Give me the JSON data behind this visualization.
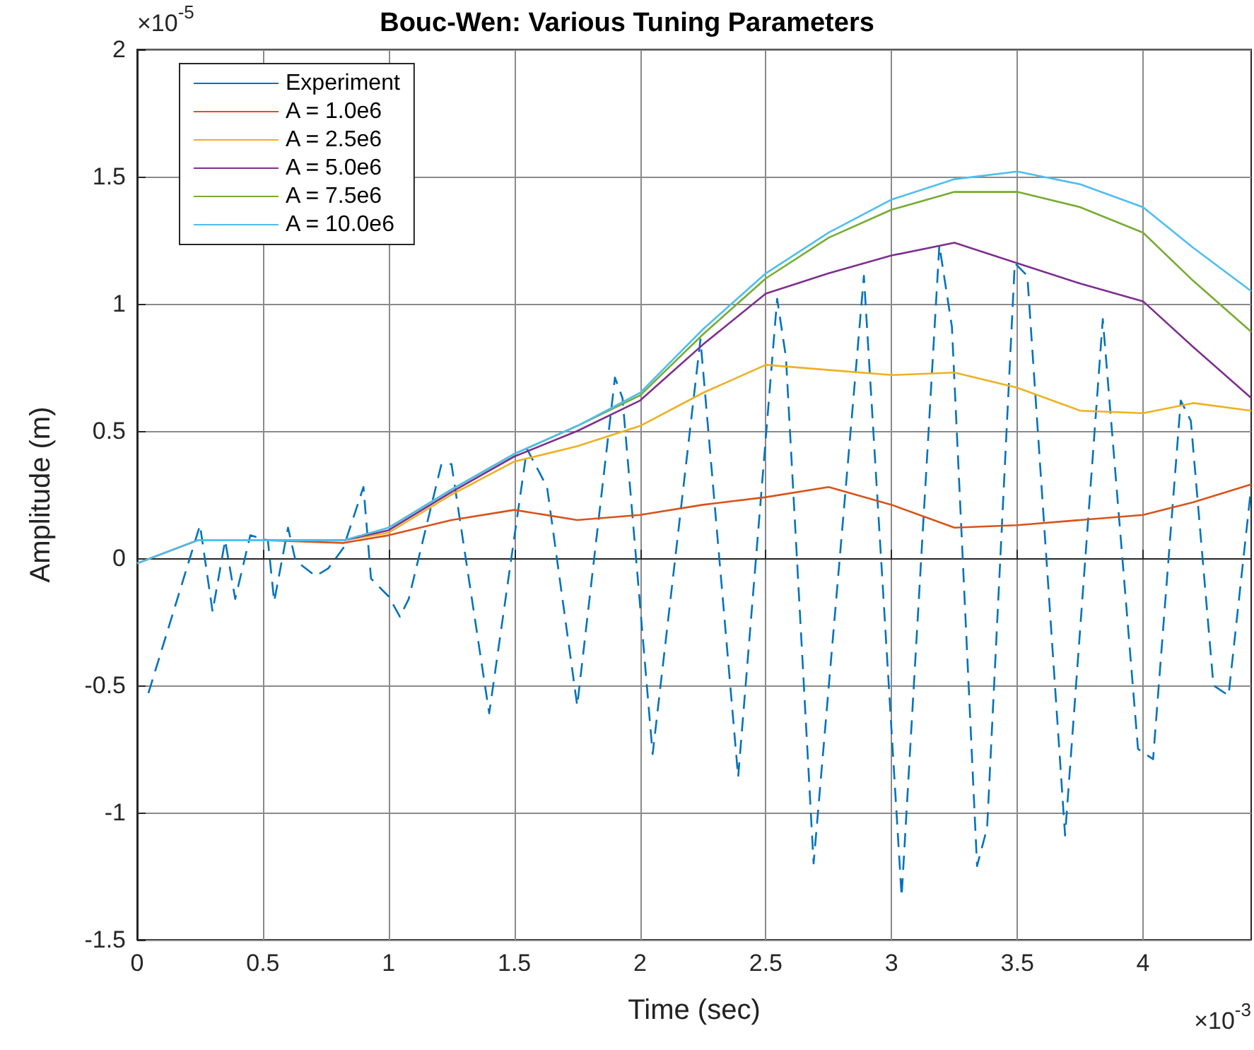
{
  "chart_data": {
    "type": "line",
    "title": "Bouc-Wen: Various Tuning Parameters",
    "xlabel": "Time (sec)",
    "ylabel": "Amplitude (m)",
    "annotations": [
      "×10$^{-5}$",
      "×10$^{-3}$"
    ],
    "xlim": [
      0,
      4.43
    ],
    "xticks": [
      0,
      0.5,
      1,
      1.5,
      2,
      2.5,
      3,
      3.5,
      4
    ],
    "ylim": [
      -1.5,
      2
    ],
    "yticks": [
      -1.5,
      -1,
      -0.5,
      0,
      0.5,
      1,
      1.5,
      2
    ],
    "grid": true,
    "legend": "top left",
    "marker": "none",
    "series": [
      {
        "name": "Experiment",
        "color": "#0072bd",
        "line_style": "dashed",
        "x": [
          0.045,
          0.25,
          0.3,
          0.35,
          0.39,
          0.45,
          0.52,
          0.545,
          0.6,
          0.63,
          0.71,
          0.76,
          0.82,
          0.9,
          0.93,
          1.0,
          1.045,
          1.08,
          1.21,
          1.25,
          1.4,
          1.55,
          1.63,
          1.75,
          1.9,
          1.93,
          2.05,
          2.24,
          2.39,
          2.545,
          2.58,
          2.69,
          2.89,
          3.04,
          3.19,
          3.24,
          3.34,
          3.38,
          3.49,
          3.54,
          3.69,
          3.84,
          3.98,
          4.04,
          4.15,
          4.19,
          4.28,
          4.34,
          4.43
        ],
        "values": [
          -0.53,
          0.13,
          -0.21,
          0.07,
          -0.16,
          0.09,
          0.07,
          -0.17,
          0.12,
          -0.01,
          -0.07,
          -0.04,
          0.04,
          0.28,
          -0.08,
          -0.15,
          -0.23,
          -0.16,
          0.37,
          0.37,
          -0.61,
          0.43,
          0.28,
          -0.58,
          0.71,
          0.63,
          -0.77,
          0.86,
          -0.86,
          1.02,
          0.79,
          -1.2,
          1.11,
          -1.33,
          1.23,
          0.91,
          -1.21,
          -1.06,
          1.16,
          1.11,
          -1.09,
          0.94,
          -0.75,
          -0.79,
          0.62,
          0.54,
          -0.5,
          -0.54,
          0.28
        ]
      },
      {
        "name": "A = 1.0e6",
        "color": "#d95319",
        "x": [
          0,
          0.24,
          0.52,
          0.82,
          1.0,
          1.25,
          1.5,
          1.75,
          2.0,
          2.25,
          2.5,
          2.75,
          3.0,
          3.25,
          3.5,
          3.75,
          4.0,
          4.2,
          4.43
        ],
        "values": [
          -0.02,
          0.07,
          0.07,
          0.06,
          0.09,
          0.15,
          0.19,
          0.15,
          0.17,
          0.21,
          0.24,
          0.28,
          0.21,
          0.12,
          0.13,
          0.15,
          0.17,
          0.22,
          0.29
        ]
      },
      {
        "name": "A = 2.5e6",
        "color": "#edb120",
        "x": [
          0.52,
          0.82,
          1.0,
          1.25,
          1.5,
          1.75,
          2.0,
          2.25,
          2.5,
          2.75,
          3.0,
          3.25,
          3.5,
          3.75,
          4.0,
          4.2,
          4.43
        ],
        "values": [
          0.07,
          0.07,
          0.1,
          0.25,
          0.38,
          0.44,
          0.52,
          0.65,
          0.76,
          0.74,
          0.72,
          0.73,
          0.67,
          0.58,
          0.57,
          0.61,
          0.58
        ]
      },
      {
        "name": "A = 5.0e6",
        "color": "#7e2f8e",
        "x": [
          0.52,
          0.82,
          1.0,
          1.25,
          1.5,
          1.75,
          2.0,
          2.25,
          2.5,
          2.75,
          3.0,
          3.25,
          3.5,
          3.75,
          4.0,
          4.2,
          4.43
        ],
        "values": [
          0.07,
          0.07,
          0.11,
          0.26,
          0.4,
          0.5,
          0.62,
          0.84,
          1.04,
          1.12,
          1.19,
          1.24,
          1.16,
          1.08,
          1.01,
          0.83,
          0.63
        ]
      },
      {
        "name": "A = 7.5e6",
        "color": "#77ac30",
        "x": [
          1.0,
          1.25,
          1.5,
          1.75,
          2.0,
          2.25,
          2.5,
          2.75,
          3.0,
          3.25,
          3.5,
          3.75,
          4.0,
          4.2,
          4.43
        ],
        "values": [
          0.12,
          0.27,
          0.41,
          0.52,
          0.64,
          0.88,
          1.1,
          1.26,
          1.37,
          1.44,
          1.44,
          1.38,
          1.28,
          1.09,
          0.89
        ]
      },
      {
        "name": "A = 10.0e6",
        "color": "#4dbeee",
        "x": [
          0,
          0.24,
          0.52,
          0.82,
          1.0,
          1.25,
          1.5,
          1.75,
          2.0,
          2.25,
          2.5,
          2.75,
          3.0,
          3.25,
          3.5,
          3.75,
          4.0,
          4.2,
          4.43
        ],
        "values": [
          -0.02,
          0.07,
          0.07,
          0.07,
          0.12,
          0.27,
          0.41,
          0.52,
          0.65,
          0.9,
          1.12,
          1.28,
          1.41,
          1.49,
          1.52,
          1.47,
          1.38,
          1.22,
          1.05
        ]
      }
    ]
  }
}
